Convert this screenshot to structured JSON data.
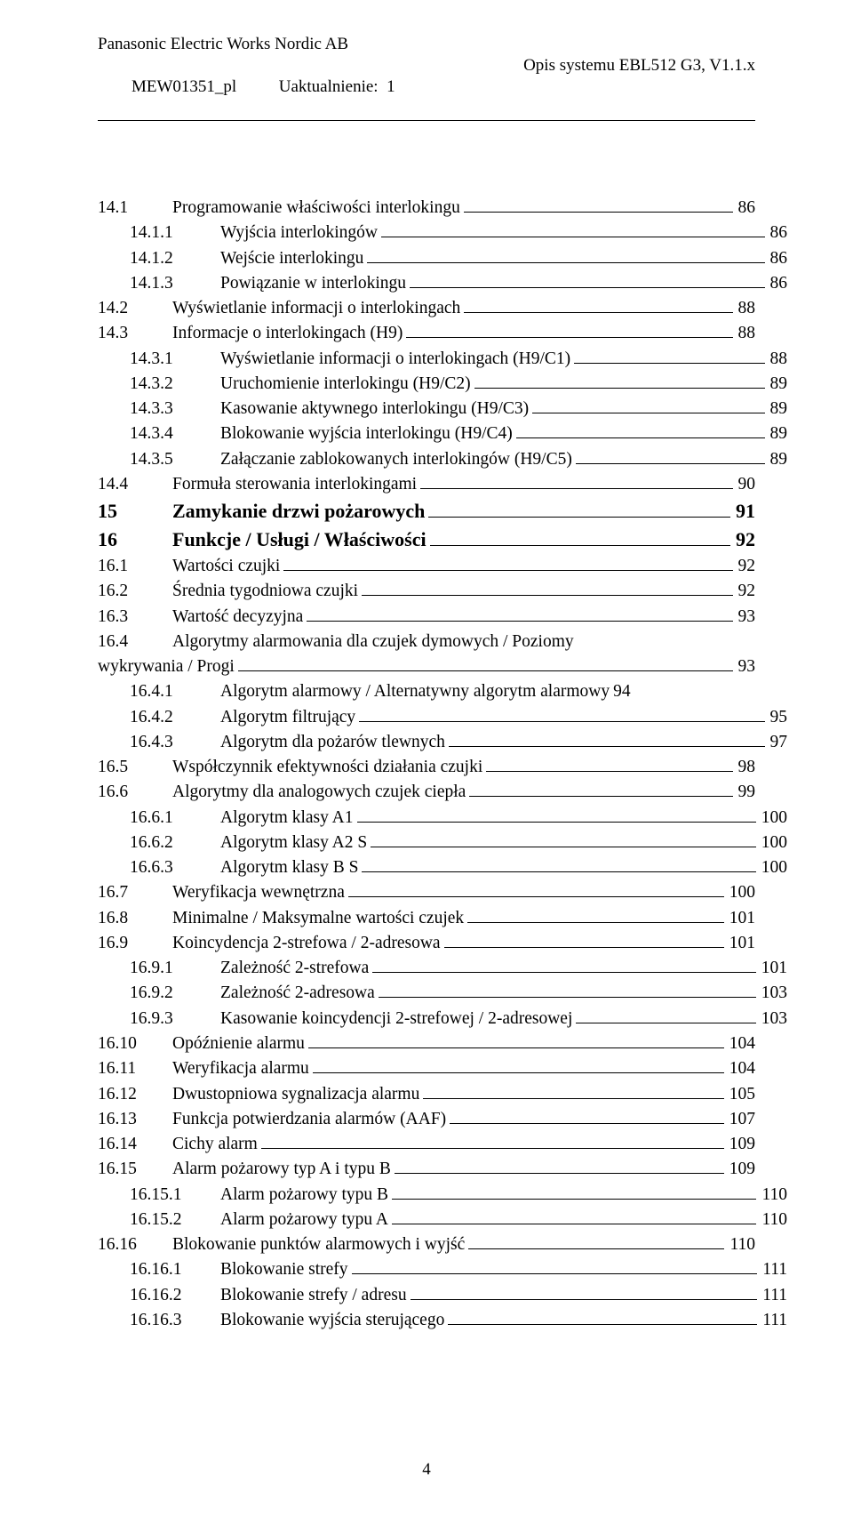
{
  "header": {
    "company": "Panasonic Electric Works Nordic AB",
    "doc_code": "MEW01351_pl",
    "update_label": "Uaktualnienie:  1",
    "right_title": "Opis systemu EBL512 G3, V1.1.x"
  },
  "toc": [
    {
      "num": "14.1",
      "title": "Programowanie właściwości interlokingu",
      "page": "86",
      "indent": 0,
      "bold": false
    },
    {
      "num": "14.1.1",
      "title": "Wyjścia interlokingów",
      "page": "86",
      "indent": 1,
      "bold": false
    },
    {
      "num": "14.1.2",
      "title": "Wejście interlokingu",
      "page": "86",
      "indent": 1,
      "bold": false
    },
    {
      "num": "14.1.3",
      "title": "Powiązanie w interlokingu",
      "page": "86",
      "indent": 1,
      "bold": false
    },
    {
      "num": "14.2",
      "title": "Wyświetlanie informacji o interlokingach",
      "page": "88",
      "indent": 0,
      "bold": false
    },
    {
      "num": "14.3",
      "title": "Informacje o interlokingach (H9)",
      "page": "88",
      "indent": 0,
      "bold": false
    },
    {
      "num": "14.3.1",
      "title": "Wyświetlanie informacji o interlokingach (H9/C1)",
      "page": "88",
      "indent": 1,
      "bold": false
    },
    {
      "num": "14.3.2",
      "title": "Uruchomienie interlokingu (H9/C2)",
      "page": "89",
      "indent": 1,
      "bold": false
    },
    {
      "num": "14.3.3",
      "title": "Kasowanie aktywnego interlokingu (H9/C3)",
      "page": "89",
      "indent": 1,
      "bold": false
    },
    {
      "num": "14.3.4",
      "title": "Blokowanie wyjścia interlokingu (H9/C4)",
      "page": "89",
      "indent": 1,
      "bold": false
    },
    {
      "num": "14.3.5",
      "title": "Załączanie zablokowanych interlokingów (H9/C5)",
      "page": "89",
      "indent": 1,
      "bold": false
    },
    {
      "num": "14.4",
      "title": "Formuła sterowania interlokingami",
      "page": "90",
      "indent": 0,
      "bold": false
    },
    {
      "num": "15",
      "title": "Zamykanie drzwi pożarowych",
      "page": "91",
      "indent": 0,
      "bold": true
    },
    {
      "num": "16",
      "title": "Funkcje / Usługi / Właściwości",
      "page": "92",
      "indent": 0,
      "bold": true
    },
    {
      "num": "16.1",
      "title": "Wartości czujki",
      "page": "92",
      "indent": 0,
      "bold": false
    },
    {
      "num": "16.2",
      "title": "Średnia tygodniowa czujki",
      "page": "92",
      "indent": 0,
      "bold": false
    },
    {
      "num": "16.3",
      "title": "Wartość decyzyjna",
      "page": "93",
      "indent": 0,
      "bold": false
    },
    {
      "num": "16.4",
      "title_line1": "Algorytmy  alarmowania  dla  czujek  dymowych  /  Poziomy",
      "title_line2": "wykrywania / Progi",
      "page": "93",
      "indent": 0,
      "bold": false,
      "wrap": true
    },
    {
      "num": "16.4.1",
      "title": "Algorytm alarmowy / Alternatywny algorytm alarmowy",
      "page": "94",
      "indent": 1,
      "bold": false,
      "noleader": true
    },
    {
      "num": "16.4.2",
      "title": "Algorytm filtrujący",
      "page": "95",
      "indent": 1,
      "bold": false
    },
    {
      "num": "16.4.3",
      "title": "Algorytm dla pożarów tlewnych",
      "page": "97",
      "indent": 1,
      "bold": false
    },
    {
      "num": "16.5",
      "title": "Współczynnik efektywności działania czujki",
      "page": "98",
      "indent": 0,
      "bold": false
    },
    {
      "num": "16.6",
      "title": "Algorytmy dla analogowych czujek ciepła",
      "page": "99",
      "indent": 0,
      "bold": false
    },
    {
      "num": "16.6.1",
      "title": "Algorytm klasy A1",
      "page": "100",
      "indent": 1,
      "bold": false
    },
    {
      "num": "16.6.2",
      "title": "Algorytm klasy A2 S",
      "page": "100",
      "indent": 1,
      "bold": false
    },
    {
      "num": "16.6.3",
      "title": "Algorytm klasy B S",
      "page": "100",
      "indent": 1,
      "bold": false
    },
    {
      "num": "16.7",
      "title": "Weryfikacja wewnętrzna",
      "page": "100",
      "indent": 0,
      "bold": false
    },
    {
      "num": "16.8",
      "title": "Minimalne / Maksymalne wartości czujek",
      "page": "101",
      "indent": 0,
      "bold": false
    },
    {
      "num": "16.9",
      "title": "Koincydencja 2-strefowa / 2-adresowa",
      "page": "101",
      "indent": 0,
      "bold": false
    },
    {
      "num": "16.9.1",
      "title": "Zależność 2-strefowa",
      "page": "101",
      "indent": 1,
      "bold": false
    },
    {
      "num": "16.9.2",
      "title": "Zależność 2-adresowa",
      "page": "103",
      "indent": 1,
      "bold": false
    },
    {
      "num": "16.9.3",
      "title": "Kasowanie koincydencji 2-strefowej / 2-adresowej",
      "page": "103",
      "indent": 1,
      "bold": false
    },
    {
      "num": "16.10",
      "title": "Opóźnienie alarmu",
      "page": "104",
      "indent": 0,
      "bold": false
    },
    {
      "num": "16.11",
      "title": "Weryfikacja alarmu",
      "page": "104",
      "indent": 0,
      "bold": false
    },
    {
      "num": "16.12",
      "title": "Dwustopniowa sygnalizacja alarmu",
      "page": "105",
      "indent": 0,
      "bold": false
    },
    {
      "num": "16.13",
      "title": "Funkcja potwierdzania alarmów (AAF)",
      "page": "107",
      "indent": 0,
      "bold": false
    },
    {
      "num": "16.14",
      "title": "Cichy alarm",
      "page": "109",
      "indent": 0,
      "bold": false
    },
    {
      "num": "16.15",
      "title": "Alarm pożarowy typ A i typu B",
      "page": "109",
      "indent": 0,
      "bold": false
    },
    {
      "num": "16.15.1",
      "title": "Alarm pożarowy typu B",
      "page": "110",
      "indent": 1,
      "bold": false
    },
    {
      "num": "16.15.2",
      "title": "Alarm pożarowy typu A",
      "page": "110",
      "indent": 1,
      "bold": false
    },
    {
      "num": "16.16",
      "title": "Blokowanie punktów alarmowych i wyjść",
      "page": "110",
      "indent": 0,
      "bold": false
    },
    {
      "num": "16.16.1",
      "title": "Blokowanie strefy",
      "page": "111",
      "indent": 1,
      "bold": false
    },
    {
      "num": "16.16.2",
      "title": "Blokowanie strefy / adresu",
      "page": "111",
      "indent": 1,
      "bold": false
    },
    {
      "num": "16.16.3",
      "title": "Blokowanie wyjścia sterującego",
      "page": "111",
      "indent": 1,
      "bold": false
    }
  ],
  "footer": {
    "page_number": "4"
  },
  "num_col_widths": {
    "indent0": "74px",
    "indent1": "92px",
    "indent2": "110px"
  }
}
